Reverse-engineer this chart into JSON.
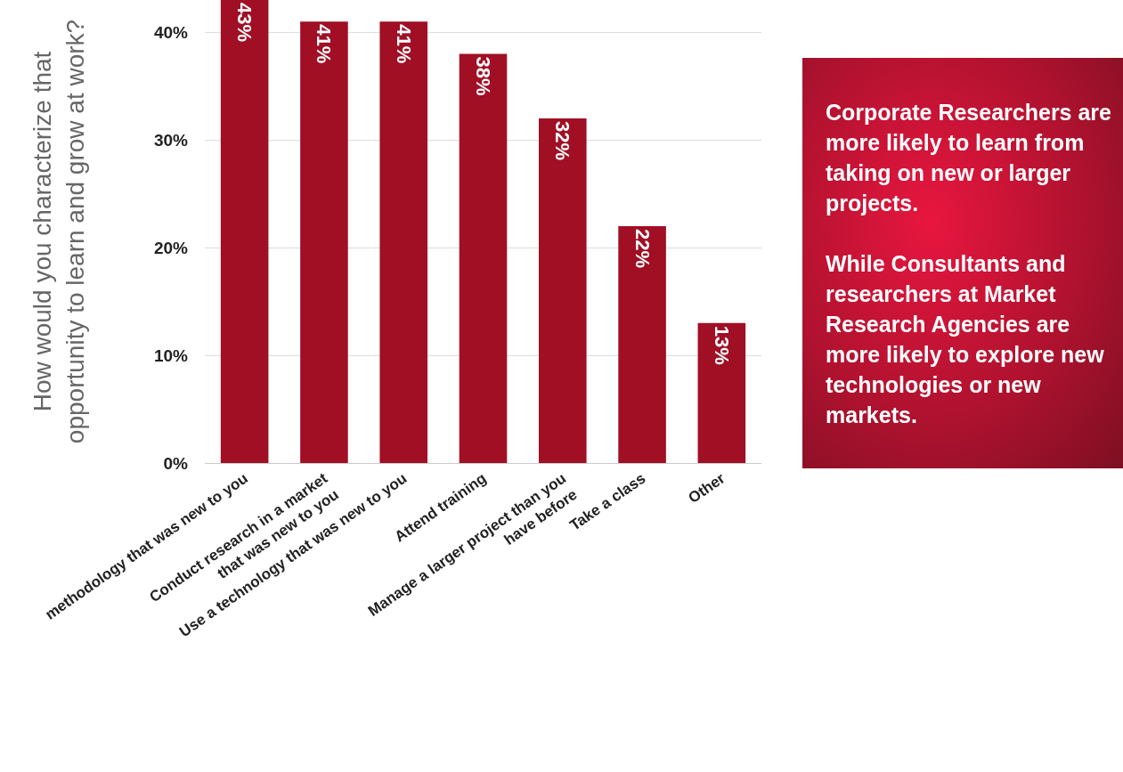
{
  "chart_data": {
    "type": "bar",
    "ylabel": "How would you characterize that\nopportunity to learn and grow at work?",
    "categories": [
      "methodology that was new to you",
      "Conduct research in a market\nthat was new to you",
      "Use a technology that was new to you",
      "Attend training",
      "Manage a larger project than you\nhave before",
      "Take a class",
      "Other"
    ],
    "values": [
      43,
      41,
      41,
      38,
      32,
      22,
      13
    ],
    "value_labels": [
      "43%",
      "41%",
      "41%",
      "38%",
      "32%",
      "22%",
      "13%"
    ],
    "color": "#a00f24",
    "ylim": [
      0,
      43
    ],
    "yticks": [
      {
        "value": 0,
        "label": "0%"
      },
      {
        "value": 10,
        "label": "10%"
      },
      {
        "value": 20,
        "label": "20%"
      },
      {
        "value": 30,
        "label": "30%"
      },
      {
        "value": 40,
        "label": "40%"
      }
    ],
    "grid": "y",
    "legend": false,
    "annotations": [
      "Corporate Researchers are more likely to learn from taking on new or larger projects.",
      "While Consultants and researchers at Market Research Agencies are more likely to explore new technologies or new markets."
    ]
  }
}
